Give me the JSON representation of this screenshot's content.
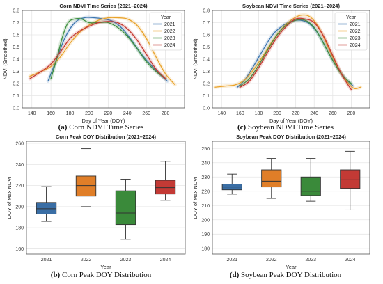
{
  "colors": {
    "2021": "#3b75af",
    "2022": "#e9a229",
    "2023": "#3f8f3f",
    "2024": "#c53a32",
    "box_2021": "#3a6ea5",
    "box_2022": "#e07e28",
    "box_2023": "#3a8a3a",
    "box_2024": "#c33a35",
    "grid": "#e6e6e6",
    "axes": "#555555"
  },
  "chart_data": [
    {
      "type": "line",
      "title": "Corn NDVI Time Series (2021–2024)",
      "xlabel": "Day of Year (DOY)",
      "ylabel": "NDVI (Smoothed)",
      "caption_label": "(a)",
      "caption_text": "Corn NDVI Time Series",
      "xlim": [
        130,
        300
      ],
      "ylim": [
        0.0,
        0.8
      ],
      "xticks": [
        140,
        160,
        180,
        200,
        220,
        240,
        260,
        280
      ],
      "yticks": [
        0.0,
        0.1,
        0.2,
        0.3,
        0.4,
        0.5,
        0.6,
        0.7,
        0.8
      ],
      "grid": true,
      "legend": {
        "title": "Year",
        "placement": "top-right",
        "entries": [
          "2021",
          "2022",
          "2023",
          "2024"
        ]
      },
      "series": [
        {
          "name": "2021",
          "x": [
            157,
            165,
            175,
            185,
            195,
            205,
            215,
            225,
            235,
            245,
            255,
            265,
            275,
            282
          ],
          "y": [
            0.22,
            0.38,
            0.58,
            0.7,
            0.74,
            0.74,
            0.73,
            0.71,
            0.65,
            0.55,
            0.44,
            0.35,
            0.27,
            0.22
          ]
        },
        {
          "name": "2022",
          "x": [
            138,
            150,
            160,
            170,
            180,
            190,
            200,
            210,
            220,
            230,
            240,
            250,
            260,
            270,
            280,
            290
          ],
          "y": [
            0.26,
            0.3,
            0.34,
            0.42,
            0.53,
            0.62,
            0.68,
            0.72,
            0.74,
            0.74,
            0.73,
            0.68,
            0.57,
            0.42,
            0.28,
            0.19
          ]
        },
        {
          "name": "2023",
          "x": [
            160,
            166,
            172,
            178,
            185,
            192,
            200,
            210,
            220,
            230,
            240,
            250,
            260,
            270,
            280
          ],
          "y": [
            0.24,
            0.4,
            0.58,
            0.7,
            0.73,
            0.73,
            0.7,
            0.7,
            0.7,
            0.66,
            0.59,
            0.49,
            0.38,
            0.3,
            0.24
          ]
        },
        {
          "name": "2024",
          "x": [
            138,
            150,
            160,
            170,
            180,
            190,
            200,
            210,
            220,
            230,
            240,
            250,
            260,
            270,
            280
          ],
          "y": [
            0.24,
            0.3,
            0.36,
            0.46,
            0.57,
            0.63,
            0.67,
            0.7,
            0.71,
            0.7,
            0.65,
            0.56,
            0.44,
            0.32,
            0.24
          ]
        }
      ]
    },
    {
      "type": "line",
      "title": "Soybean NDVI Time Series (2021–2024)",
      "xlabel": "Day of Year (DOY)",
      "ylabel": "NDVI (Smoothed)",
      "caption_label": "(c)",
      "caption_text": "Soybean NDVI Time Series",
      "xlim": [
        130,
        300
      ],
      "ylim": [
        0.0,
        0.8
      ],
      "xticks": [
        140,
        160,
        180,
        200,
        220,
        240,
        260,
        280
      ],
      "yticks": [
        0.0,
        0.1,
        0.2,
        0.3,
        0.4,
        0.5,
        0.6,
        0.7,
        0.8
      ],
      "grid": true,
      "legend": {
        "title": "Year",
        "placement": "top-right",
        "entries": [
          "2021",
          "2022",
          "2023",
          "2024"
        ]
      },
      "series": [
        {
          "name": "2021",
          "x": [
            157,
            165,
            175,
            185,
            195,
            205,
            215,
            225,
            235,
            245,
            255,
            265,
            275,
            282
          ],
          "y": [
            0.17,
            0.23,
            0.35,
            0.48,
            0.6,
            0.67,
            0.71,
            0.72,
            0.69,
            0.6,
            0.46,
            0.33,
            0.23,
            0.18
          ]
        },
        {
          "name": "2022",
          "x": [
            133,
            145,
            155,
            165,
            175,
            185,
            195,
            205,
            215,
            225,
            235,
            245,
            255,
            265,
            275,
            283,
            290
          ],
          "y": [
            0.17,
            0.18,
            0.19,
            0.23,
            0.32,
            0.43,
            0.55,
            0.65,
            0.72,
            0.76,
            0.75,
            0.66,
            0.5,
            0.34,
            0.22,
            0.16,
            0.17
          ]
        },
        {
          "name": "2023",
          "x": [
            160,
            170,
            180,
            190,
            200,
            210,
            220,
            230,
            240,
            250,
            260,
            270,
            280
          ],
          "y": [
            0.18,
            0.24,
            0.35,
            0.48,
            0.6,
            0.68,
            0.72,
            0.72,
            0.66,
            0.53,
            0.39,
            0.27,
            0.2
          ]
        },
        {
          "name": "2024",
          "x": [
            160,
            170,
            180,
            190,
            200,
            210,
            220,
            230,
            240,
            250,
            260,
            270,
            280
          ],
          "y": [
            0.17,
            0.22,
            0.33,
            0.46,
            0.58,
            0.67,
            0.73,
            0.73,
            0.7,
            0.59,
            0.43,
            0.27,
            0.15
          ]
        }
      ]
    },
    {
      "type": "box",
      "title": "Corn Peak DOY Distribution (2021–2024)",
      "xlabel": "Year",
      "ylabel": "DOY of Max NDVI",
      "caption_label": "(b)",
      "caption_text": "Corn Peak DOY Distribution",
      "ylim": [
        155,
        262
      ],
      "yticks": [
        160,
        180,
        200,
        220,
        240,
        260
      ],
      "grid": true,
      "categories": [
        "2021",
        "2022",
        "2023",
        "2024"
      ],
      "boxes": [
        {
          "min": 186,
          "q1": 193,
          "median": 198,
          "q3": 204,
          "max": 219
        },
        {
          "min": 200,
          "q1": 210,
          "median": 220,
          "q3": 229,
          "max": 255
        },
        {
          "min": 169,
          "q1": 183,
          "median": 194,
          "q3": 215,
          "max": 226
        },
        {
          "min": 206,
          "q1": 212,
          "median": 218,
          "q3": 225,
          "max": 243
        }
      ]
    },
    {
      "type": "box",
      "title": "Soybean Peak DOY Distribution (2021–2024)",
      "xlabel": "Year",
      "ylabel": "DOY of Max NDVI",
      "caption_label": "(d)",
      "caption_text": "Soybean Peak DOY Distribution",
      "ylim": [
        176,
        255
      ],
      "yticks": [
        180,
        190,
        200,
        210,
        220,
        230,
        240,
        250
      ],
      "grid": true,
      "categories": [
        "2021",
        "2022",
        "2023",
        "2024"
      ],
      "boxes": [
        {
          "min": 218,
          "q1": 221,
          "median": 223,
          "q3": 225,
          "max": 232
        },
        {
          "min": 215,
          "q1": 223,
          "median": 227,
          "q3": 235,
          "max": 243
        },
        {
          "min": 213,
          "q1": 217,
          "median": 220,
          "q3": 230,
          "max": 243
        },
        {
          "min": 207,
          "q1": 222,
          "median": 228,
          "q3": 235,
          "max": 248
        }
      ]
    }
  ]
}
